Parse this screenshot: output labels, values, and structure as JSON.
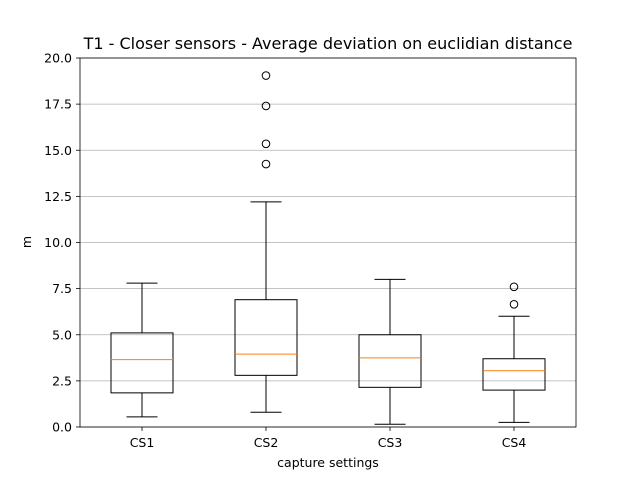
{
  "chart_data": {
    "type": "box",
    "title": "T1 - Closer sensors - Average deviation on euclidian distance",
    "xlabel": "capture settings",
    "ylabel": "m",
    "ylim": [
      0,
      20
    ],
    "yticks": [
      "0.0",
      "2.5",
      "5.0",
      "7.5",
      "10.0",
      "12.5",
      "15.0",
      "17.5",
      "20.0"
    ],
    "grid": "horizontal",
    "colors": {
      "median": "#ff7f0e",
      "box": "#000000",
      "grid": "#b0b0b0"
    },
    "categories": [
      "CS1",
      "CS2",
      "CS3",
      "CS4"
    ],
    "boxes": [
      {
        "label": "CS1",
        "whisker_low": 0.55,
        "q1": 1.85,
        "median": 3.65,
        "q3": 5.1,
        "whisker_high": 7.8,
        "outliers": []
      },
      {
        "label": "CS2",
        "whisker_low": 0.8,
        "q1": 2.8,
        "median": 3.95,
        "q3": 6.9,
        "whisker_high": 12.2,
        "outliers": [
          14.25,
          15.35,
          17.4,
          19.05
        ]
      },
      {
        "label": "CS3",
        "whisker_low": 0.15,
        "q1": 2.15,
        "median": 3.75,
        "q3": 5.0,
        "whisker_high": 8.0,
        "outliers": []
      },
      {
        "label": "CS4",
        "whisker_low": 0.25,
        "q1": 2.0,
        "median": 3.05,
        "q3": 3.7,
        "whisker_high": 6.0,
        "outliers": [
          6.65,
          7.6
        ]
      }
    ]
  }
}
